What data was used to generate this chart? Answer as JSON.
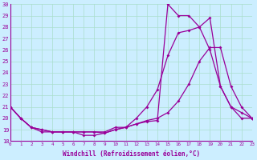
{
  "xlabel": "Windchill (Refroidissement éolien,°C)",
  "bg_color": "#cceeff",
  "grid_color": "#aaddcc",
  "line_color": "#990099",
  "xmin": 0,
  "xmax": 23,
  "ymin": 18,
  "ymax": 30,
  "series1_x": [
    0,
    1,
    2,
    3,
    4,
    5,
    6,
    7,
    8,
    9,
    10,
    11,
    12,
    13,
    14,
    15,
    16,
    17,
    18,
    19,
    20,
    21,
    22,
    23
  ],
  "series1_y": [
    21.0,
    20.0,
    19.2,
    18.8,
    18.8,
    18.8,
    18.8,
    18.5,
    18.5,
    18.7,
    19.0,
    19.2,
    19.5,
    19.8,
    20.0,
    20.5,
    21.5,
    23.0,
    25.0,
    26.2,
    26.2,
    22.8,
    21.0,
    20.0
  ],
  "series2_x": [
    0,
    1,
    2,
    3,
    4,
    5,
    6,
    7,
    8,
    9,
    10,
    11,
    12,
    13,
    14,
    15,
    16,
    17,
    18,
    19,
    20,
    21,
    22,
    23
  ],
  "series2_y": [
    21.0,
    20.0,
    19.2,
    19.0,
    18.8,
    18.8,
    18.8,
    18.8,
    18.8,
    18.7,
    19.0,
    19.2,
    20.0,
    21.0,
    22.5,
    25.5,
    27.5,
    27.7,
    28.0,
    26.0,
    22.8,
    21.0,
    20.5,
    20.0
  ],
  "series3_x": [
    0,
    1,
    2,
    3,
    4,
    5,
    6,
    7,
    8,
    9,
    10,
    11,
    12,
    13,
    14,
    15,
    16,
    17,
    18,
    19,
    20,
    21,
    22,
    23
  ],
  "series3_y": [
    21.0,
    20.0,
    19.2,
    19.0,
    18.8,
    18.8,
    18.8,
    18.8,
    18.8,
    18.8,
    19.2,
    19.2,
    19.5,
    19.7,
    19.8,
    30.0,
    29.0,
    29.0,
    28.0,
    28.8,
    22.8,
    21.0,
    20.0,
    20.0
  ]
}
